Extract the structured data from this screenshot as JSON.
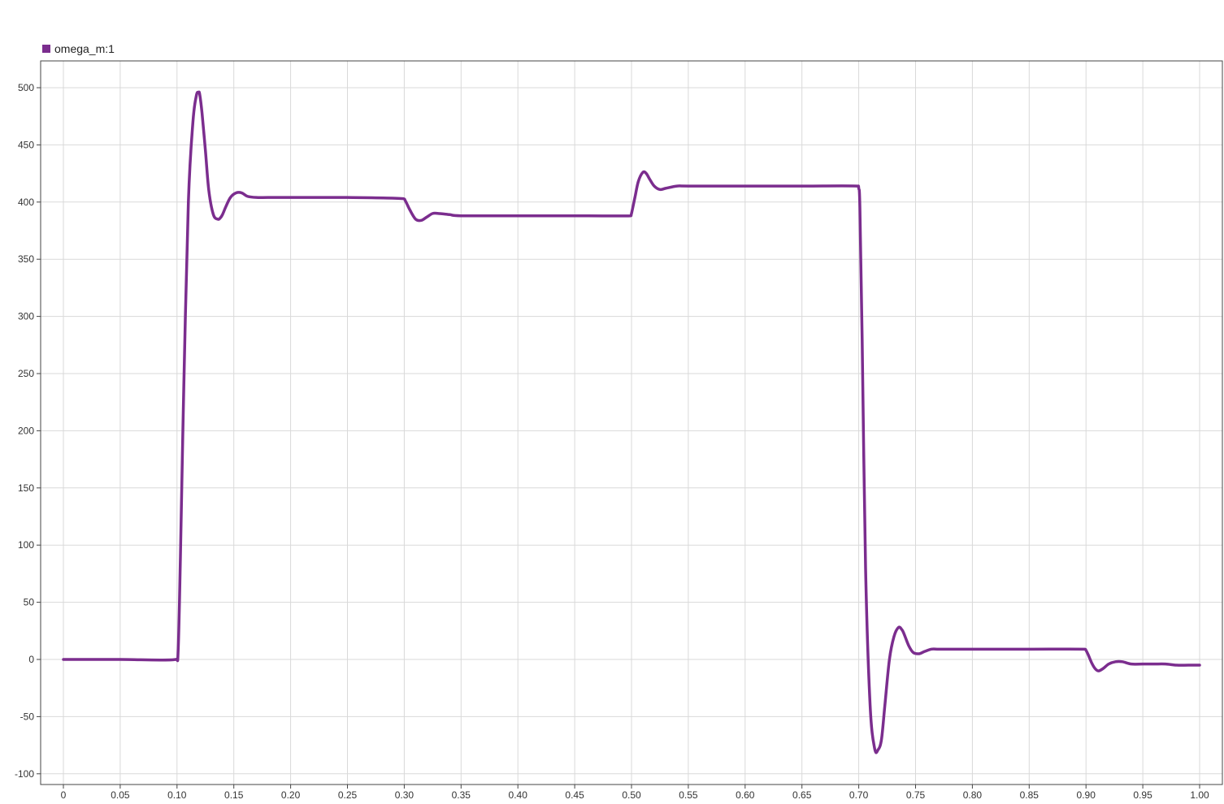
{
  "chart_data": {
    "type": "line",
    "title": "",
    "xlabel": "",
    "ylabel": "",
    "xlim": [
      0,
      1.0
    ],
    "ylim": [
      -100,
      500
    ],
    "grid": true,
    "legend": "top-left",
    "x_ticks": [
      "0",
      "0.05",
      "0.10",
      "0.15",
      "0.20",
      "0.25",
      "0.30",
      "0.35",
      "0.40",
      "0.45",
      "0.50",
      "0.55",
      "0.60",
      "0.65",
      "0.70",
      "0.75",
      "0.80",
      "0.85",
      "0.90",
      "0.95",
      "1.00"
    ],
    "x_tick_values": [
      0,
      0.05,
      0.1,
      0.15,
      0.2,
      0.25,
      0.3,
      0.35,
      0.4,
      0.45,
      0.5,
      0.55,
      0.6,
      0.65,
      0.7,
      0.75,
      0.8,
      0.85,
      0.9,
      0.95,
      1.0
    ],
    "y_ticks": [
      "500",
      "450",
      "400",
      "350",
      "300",
      "250",
      "200",
      "150",
      "100",
      "50",
      "0",
      "-50",
      "-100"
    ],
    "y_tick_values": [
      500,
      450,
      400,
      350,
      300,
      250,
      200,
      150,
      100,
      50,
      0,
      -50,
      -100
    ],
    "colors": {
      "series": "#7b2d8e",
      "grid": "#d9d9d9",
      "frame": "#444444"
    },
    "series": [
      {
        "name": "omega_m:1",
        "x": [
          0,
          0.05,
          0.099,
          0.101,
          0.103,
          0.106,
          0.11,
          0.114,
          0.117,
          0.119,
          0.12,
          0.122,
          0.125,
          0.128,
          0.132,
          0.136,
          0.138,
          0.14,
          0.143,
          0.147,
          0.152,
          0.157,
          0.162,
          0.17,
          0.18,
          0.2,
          0.25,
          0.299,
          0.301,
          0.305,
          0.31,
          0.315,
          0.32,
          0.325,
          0.33,
          0.34,
          0.35,
          0.4,
          0.449,
          0.451,
          0.499,
          0.5,
          0.503,
          0.506,
          0.51,
          0.513,
          0.516,
          0.52,
          0.525,
          0.53,
          0.54,
          0.55,
          0.6,
          0.65,
          0.699,
          0.7,
          0.701,
          0.703,
          0.706,
          0.71,
          0.714,
          0.717,
          0.72,
          0.723,
          0.727,
          0.731,
          0.735,
          0.738,
          0.74,
          0.744,
          0.748,
          0.753,
          0.758,
          0.764,
          0.77,
          0.78,
          0.8,
          0.85,
          0.899,
          0.9,
          0.902,
          0.905,
          0.908,
          0.911,
          0.915,
          0.92,
          0.926,
          0.932,
          0.94,
          0.95,
          0.96,
          0.97,
          0.98,
          0.99,
          1.0
        ],
        "values": [
          0,
          0,
          0,
          8,
          90,
          240,
          400,
          470,
          493,
          496,
          494,
          478,
          445,
          410,
          389,
          385,
          386,
          389,
          396,
          404,
          408,
          408,
          405,
          404,
          404,
          404,
          404,
          403,
          401,
          393,
          385,
          384,
          387,
          390,
          390,
          389,
          388,
          388,
          388,
          388,
          388,
          390,
          404,
          418,
          426,
          425,
          420,
          414,
          411,
          412,
          414,
          414,
          414,
          414,
          414,
          412,
          395,
          280,
          80,
          -40,
          -78,
          -79,
          -70,
          -40,
          0,
          20,
          28,
          26,
          22,
          12,
          6,
          5,
          7,
          9,
          9,
          9,
          9,
          9,
          9,
          8,
          4,
          -3,
          -8,
          -10,
          -8,
          -4,
          -2,
          -2,
          -4,
          -4,
          -4,
          -4,
          -5,
          -5,
          -5
        ]
      }
    ]
  }
}
